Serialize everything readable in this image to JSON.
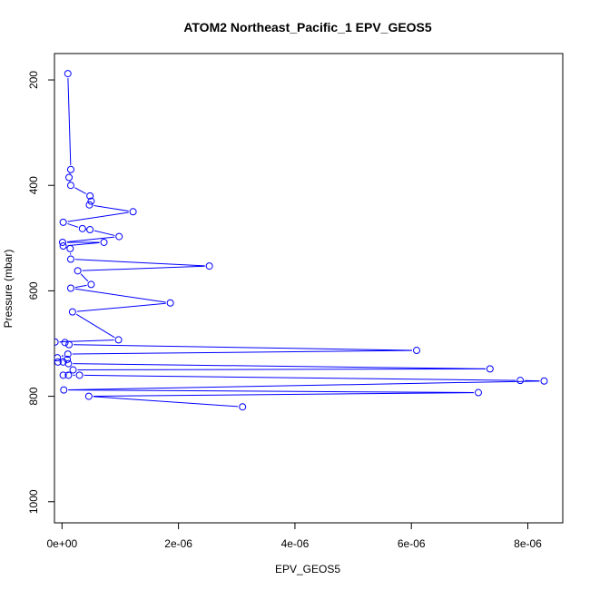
{
  "chart_data": {
    "type": "scatter",
    "title": "ATOM2 Northeast_Pacific_1 EPV_GEOS5",
    "xlabel": "EPV_GEOS5",
    "ylabel": "Pressure (mbar)",
    "xlim": [
      -1.3e-07,
      8.6e-06
    ],
    "ylim": [
      1040,
      150
    ],
    "y_reversed": true,
    "grid": false,
    "legend": "none",
    "x_ticks": [
      {
        "value": 0,
        "label": "0e+00"
      },
      {
        "value": 2e-06,
        "label": "2e-06"
      },
      {
        "value": 4e-06,
        "label": "4e-06"
      },
      {
        "value": 6e-06,
        "label": "6e-06"
      },
      {
        "value": 8e-06,
        "label": "8e-06"
      }
    ],
    "y_ticks": [
      {
        "value": 200,
        "label": "200"
      },
      {
        "value": 400,
        "label": "400"
      },
      {
        "value": 600,
        "label": "600"
      },
      {
        "value": 800,
        "label": "800"
      },
      {
        "value": 1000,
        "label": "1000"
      }
    ],
    "series": [
      {
        "color": "#0000ff",
        "marker": "open-circle",
        "connect": true,
        "points": [
          {
            "x": 1e-07,
            "y": 188
          },
          {
            "x": 1.5e-07,
            "y": 370
          },
          {
            "x": 1.2e-07,
            "y": 385
          },
          {
            "x": 1.5e-07,
            "y": 400
          },
          {
            "x": 4.8e-07,
            "y": 420
          },
          {
            "x": 5e-07,
            "y": 430
          },
          {
            "x": 4.7e-07,
            "y": 437
          },
          {
            "x": 1.22e-06,
            "y": 450
          },
          {
            "x": 2e-08,
            "y": 470
          },
          {
            "x": 3.5e-07,
            "y": 482
          },
          {
            "x": 4.8e-07,
            "y": 484
          },
          {
            "x": 9.8e-07,
            "y": 497
          },
          {
            "x": 1e-08,
            "y": 508
          },
          {
            "x": 7.2e-07,
            "y": 508
          },
          {
            "x": 2e-08,
            "y": 515
          },
          {
            "x": 1.4e-07,
            "y": 520
          },
          {
            "x": 1.5e-07,
            "y": 540
          },
          {
            "x": 2.53e-06,
            "y": 553
          },
          {
            "x": 2.7e-07,
            "y": 562
          },
          {
            "x": 5e-07,
            "y": 588
          },
          {
            "x": 1.5e-07,
            "y": 595
          },
          {
            "x": 1.86e-06,
            "y": 623
          },
          {
            "x": 1.8e-07,
            "y": 640
          },
          {
            "x": 9.7e-07,
            "y": 693
          },
          {
            "x": -1.2e-07,
            "y": 697
          },
          {
            "x": 5e-08,
            "y": 698
          },
          {
            "x": 1.2e-07,
            "y": 702
          },
          {
            "x": 6.09e-06,
            "y": 713
          },
          {
            "x": 1e-07,
            "y": 720
          },
          {
            "x": -8e-08,
            "y": 727
          },
          {
            "x": 9e-08,
            "y": 730
          },
          {
            "x": -7e-08,
            "y": 735
          },
          {
            "x": 2e-08,
            "y": 735
          },
          {
            "x": 1.1e-07,
            "y": 738
          },
          {
            "x": 7.35e-06,
            "y": 748
          },
          {
            "x": 1.9e-07,
            "y": 750
          },
          {
            "x": 2e-08,
            "y": 760
          },
          {
            "x": 1.1e-07,
            "y": 760
          },
          {
            "x": 3e-07,
            "y": 760
          },
          {
            "x": 7.87e-06,
            "y": 770
          },
          {
            "x": 8.28e-06,
            "y": 771
          },
          {
            "x": 3e-08,
            "y": 788
          },
          {
            "x": 7.15e-06,
            "y": 793
          },
          {
            "x": 4.6e-07,
            "y": 800
          },
          {
            "x": 3.1e-06,
            "y": 820
          }
        ]
      }
    ]
  }
}
